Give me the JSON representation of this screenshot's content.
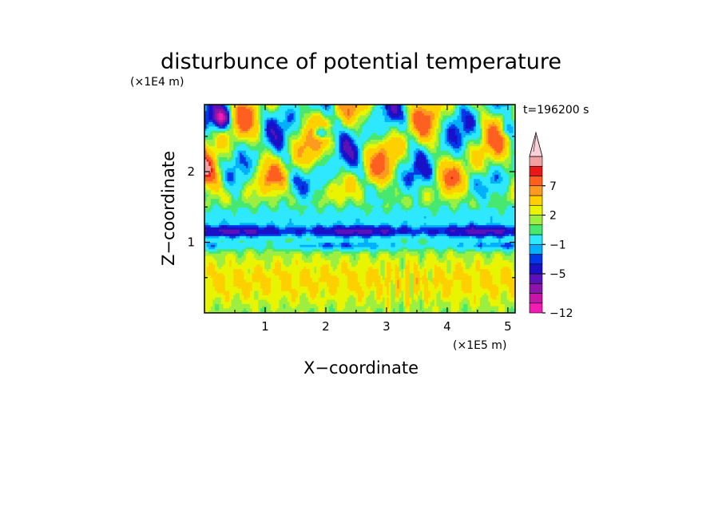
{
  "chart_data": {
    "type": "heatmap",
    "title": "disturbunce of potential temperature",
    "xlabel": "X−coordinate",
    "ylabel": "Z−coordinate",
    "x_unit": "(×1E5 m)",
    "y_unit": "(×1E4 m)",
    "time_label": "t=196200 s",
    "xlim": [
      0,
      5.12
    ],
    "ylim": [
      0,
      2.95
    ],
    "xticks": [
      1,
      2,
      3,
      4,
      5
    ],
    "xtick_labels": [
      "1",
      "2",
      "3",
      "4",
      "5"
    ],
    "yticks": [
      1,
      2
    ],
    "ytick_labels": [
      "1",
      "2"
    ],
    "grid": false,
    "colorbar": {
      "levels": [
        -12,
        -11,
        -9,
        -7,
        -5,
        -4,
        -3,
        -1,
        0,
        1,
        2,
        4,
        5,
        7,
        8,
        10
      ],
      "tick_values": [
        -12,
        -5,
        -1,
        2,
        7
      ],
      "tick_labels": [
        "−12",
        "−5",
        "−1",
        "2",
        "7"
      ],
      "colors": [
        "#f01cb4",
        "#c416a8",
        "#8c14a8",
        "#5a12b8",
        "#1a10c8",
        "#0038e8",
        "#00b0ff",
        "#2ee8ff",
        "#46e870",
        "#9cee40",
        "#e8f400",
        "#ffd000",
        "#ff9a20",
        "#ff6020",
        "#e81818",
        "#f0a0a0",
        "#fcd0d8"
      ],
      "extend": "max"
    },
    "field_description": "2D contour field of potential temperature disturbance over X (0-5.12) and Z (0-2.95)",
    "band_features": [
      {
        "z": 1.15,
        "value": -5,
        "label": "deep blue band"
      },
      {
        "z": 0.95,
        "value": -3,
        "label": "lower blue band"
      },
      {
        "z": 0.55,
        "value": 2,
        "label": "yellow lower layer"
      }
    ]
  }
}
